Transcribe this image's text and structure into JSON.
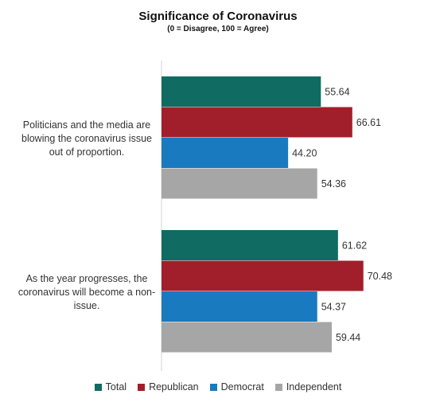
{
  "chart_data": {
    "type": "bar",
    "orientation": "horizontal",
    "title": "Significance of Coronavirus",
    "subtitle": "(0 = Disagree, 100 = Agree)",
    "categories": [
      "Politicians and the media are blowing the coronavirus issue out of proportion.",
      "As the year progresses, the coronavirus will become a non-issue."
    ],
    "series": [
      {
        "name": "Total",
        "color": "#106b62",
        "values": [
          55.64,
          61.62
        ],
        "labels": [
          "55.64",
          "61.62"
        ]
      },
      {
        "name": "Republican",
        "color": "#a01f2b",
        "values": [
          66.61,
          70.48
        ],
        "labels": [
          "66.61",
          "70.48"
        ]
      },
      {
        "name": "Democrat",
        "color": "#1a7abf",
        "values": [
          44.2,
          54.37
        ],
        "labels": [
          "44.20",
          "54.37"
        ]
      },
      {
        "name": "Independent",
        "color": "#a6a6a6",
        "values": [
          54.36,
          59.44
        ],
        "labels": [
          "54.36",
          "59.44"
        ]
      }
    ],
    "xlim": [
      0,
      100
    ],
    "grid": false,
    "legend_position": "bottom"
  }
}
